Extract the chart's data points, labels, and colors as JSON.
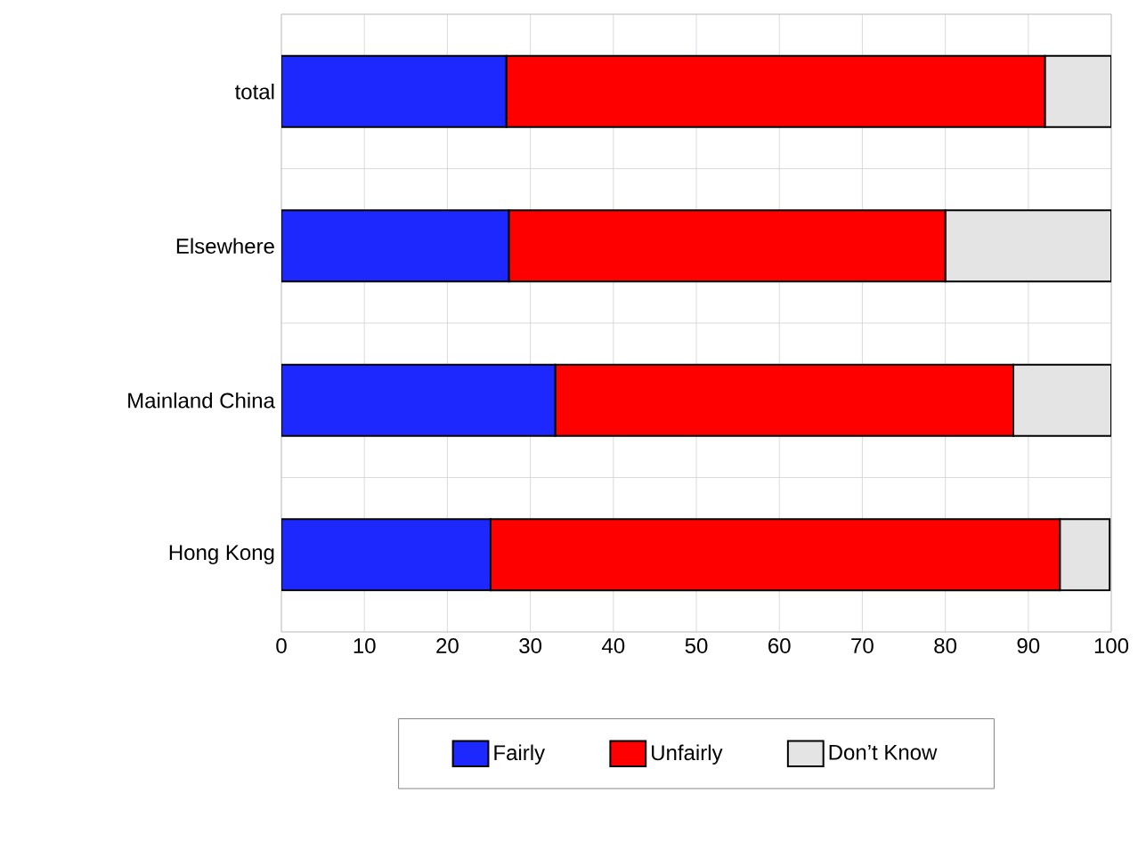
{
  "chart_data": {
    "type": "bar",
    "orientation": "horizontal",
    "stacked": true,
    "categories": [
      "total",
      "Elsewhere",
      "Mainland China",
      "Hong Kong"
    ],
    "series": [
      {
        "name": "Fairly",
        "color": "#1c28fe",
        "values": [
          27.1,
          27.4,
          33.0,
          25.2
        ]
      },
      {
        "name": "Unfairly",
        "color": "#fe0000",
        "values": [
          64.9,
          52.6,
          55.2,
          68.6
        ]
      },
      {
        "name": "Don’t Know",
        "color": "#e4e4e4",
        "values": [
          8.0,
          20.0,
          11.8,
          6.0
        ]
      }
    ],
    "xlim": [
      0,
      100
    ],
    "xticks": [
      0,
      10,
      20,
      30,
      40,
      50,
      60,
      70,
      80,
      90,
      100
    ],
    "grid": true,
    "legend": "bottom"
  }
}
